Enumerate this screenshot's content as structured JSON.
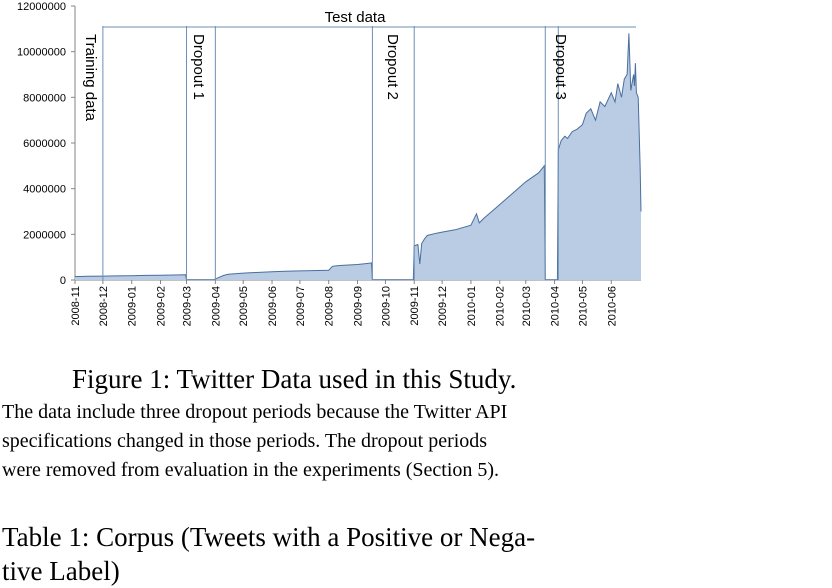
{
  "chart_data": {
    "type": "area",
    "y_ticks": [
      "12000000",
      "10000000",
      "8000000",
      "6000000",
      "4000000",
      "2000000",
      "0"
    ],
    "ylim": [
      0,
      12000000
    ],
    "x_tick_labels": [
      "2008-11",
      "2008-12",
      "2009-01",
      "2009-02",
      "2009-03",
      "2009-04",
      "2009-05",
      "2009-06",
      "2009-07",
      "2009-08",
      "2009-09",
      "2009-10",
      "2009-11",
      "2009-12",
      "2010-01",
      "2010-02",
      "2010-03",
      "2010-04",
      "2010-05",
      "2010-06"
    ],
    "period_labels": {
      "training": "Training data",
      "dropout1": "Dropout 1",
      "dropout2": "Dropout 2",
      "dropout3": "Dropout 3",
      "test": "Test data"
    },
    "period_boundaries": [
      "2008-12-01",
      "2009-03-01",
      "2009-04-01",
      "2009-09-17",
      "2009-11-01",
      "2010-03-22",
      "2010-04-05"
    ],
    "series": [
      {
        "x": [
          "2008-11-01",
          "2008-11-15",
          "2008-12-01",
          "2008-12-15",
          "2009-01-01",
          "2009-01-15",
          "2009-02-01",
          "2009-02-15",
          "2009-02-28",
          "2009-03-01",
          "2009-03-31",
          "2009-04-03",
          "2009-04-10",
          "2009-04-15",
          "2009-05-01",
          "2009-05-15",
          "2009-06-01",
          "2009-06-15",
          "2009-07-01",
          "2009-07-15",
          "2009-08-01",
          "2009-08-05",
          "2009-08-10",
          "2009-08-15",
          "2009-09-01",
          "2009-09-10",
          "2009-09-16",
          "2009-09-17",
          "2009-10-31",
          "2009-11-01",
          "2009-11-05",
          "2009-11-07",
          "2009-11-09",
          "2009-11-12",
          "2009-11-15",
          "2009-11-25",
          "2009-12-01",
          "2009-12-15",
          "2010-01-01",
          "2010-01-07",
          "2010-01-10",
          "2010-01-15",
          "2010-02-01",
          "2010-02-15",
          "2010-03-01",
          "2010-03-15",
          "2010-03-21",
          "2010-03-22",
          "2010-04-04",
          "2010-04-05",
          "2010-04-08",
          "2010-04-12",
          "2010-04-15",
          "2010-04-20",
          "2010-04-25",
          "2010-05-01",
          "2010-05-05",
          "2010-05-10",
          "2010-05-15",
          "2010-05-20",
          "2010-05-25",
          "2010-06-01",
          "2010-06-05",
          "2010-06-08",
          "2010-06-12",
          "2010-06-15",
          "2010-06-18",
          "2010-06-20",
          "2010-06-22",
          "2010-06-25",
          "2010-06-26",
          "2010-06-27",
          "2010-06-28",
          "2010-06-30",
          "2010-07-02",
          "2010-07-03"
        ],
        "values": [
          150000,
          160000,
          170000,
          180000,
          190000,
          200000,
          210000,
          220000,
          230000,
          10000,
          10000,
          80000,
          200000,
          250000,
          300000,
          330000,
          360000,
          380000,
          400000,
          410000,
          430000,
          600000,
          620000,
          640000,
          680000,
          720000,
          750000,
          10000,
          10000,
          1500000,
          1550000,
          700000,
          1600000,
          1800000,
          1950000,
          2050000,
          2100000,
          2200000,
          2400000,
          2900000,
          2500000,
          2700000,
          3300000,
          3800000,
          4300000,
          4700000,
          5000000,
          10000,
          10000,
          5700000,
          6100000,
          6300000,
          6200000,
          6500000,
          6600000,
          6800000,
          7300000,
          7500000,
          7000000,
          7800000,
          7600000,
          8200000,
          7800000,
          8600000,
          8000000,
          8800000,
          9000000,
          10800000,
          8300000,
          9000000,
          8500000,
          9500000,
          8200000,
          8000000,
          5000000,
          3000000
        ]
      }
    ]
  },
  "caption": {
    "figure_title": "Figure 1: Twitter Data used in this Study.",
    "desc_lines": [
      "The data include three dropout periods because the Twitter API",
      "specifications changed in those periods. The dropout periods",
      "were removed from evaluation in the experiments (Section 5)."
    ],
    "table_lines": [
      "Table 1: Corpus (Tweets with a Positive or Nega-",
      "tive Label)"
    ]
  },
  "colors": {
    "area_fill": "#b9cce4",
    "area_line": "#4a6e9e",
    "divider": "#6d8fb5",
    "axis": "#868686"
  }
}
